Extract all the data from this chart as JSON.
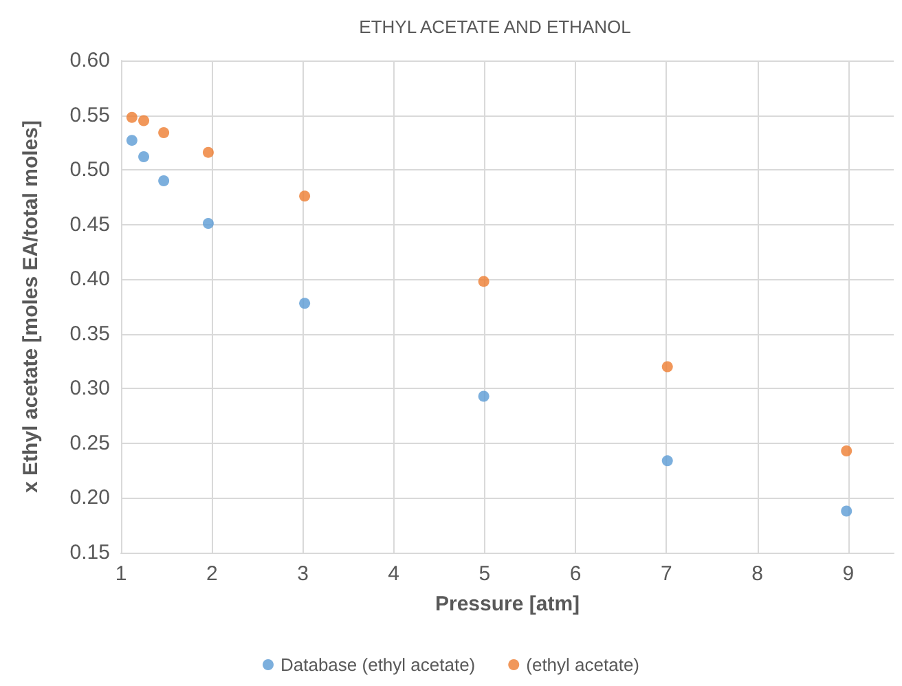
{
  "chart_data": {
    "type": "scatter",
    "title": "ETHYL ACETATE AND ETHANOL",
    "xlabel": "Pressure [atm]",
    "ylabel": "x Ethyl acetate [moles EA/total moles]",
    "x": [
      1.12,
      1.25,
      1.47,
      1.96,
      3.02,
      4.99,
      7.01,
      8.98
    ],
    "series": [
      {
        "name": "Database (ethyl acetate)",
        "color": "#5b9bd5",
        "values": [
          0.527,
          0.512,
          0.49,
          0.451,
          0.378,
          0.293,
          0.234,
          0.188
        ]
      },
      {
        "name": "(ethyl acetate)",
        "color": "#ed7d31",
        "values": [
          0.548,
          0.545,
          0.534,
          0.516,
          0.476,
          0.398,
          0.32,
          0.243
        ]
      }
    ],
    "xlim": [
      1,
      9.5
    ],
    "xticks": [
      1,
      2,
      3,
      4,
      5,
      6,
      7,
      8,
      9
    ],
    "ylim": [
      0.15,
      0.6
    ],
    "yticks": [
      {
        "value": 0.15,
        "label": "0.15"
      },
      {
        "value": 0.2,
        "label": "0.20"
      },
      {
        "value": 0.25,
        "label": "0.25"
      },
      {
        "value": 0.3,
        "label": "0.30"
      },
      {
        "value": 0.35,
        "label": "0.35"
      },
      {
        "value": 0.4,
        "label": "0.40"
      },
      {
        "value": 0.45,
        "label": "0.45"
      },
      {
        "value": 0.5,
        "label": "0.50"
      },
      {
        "value": 0.55,
        "label": "0.55"
      },
      {
        "value": 0.6,
        "label": "0.60"
      }
    ],
    "grid": true,
    "legend": "bottom",
    "marker": "circle"
  }
}
